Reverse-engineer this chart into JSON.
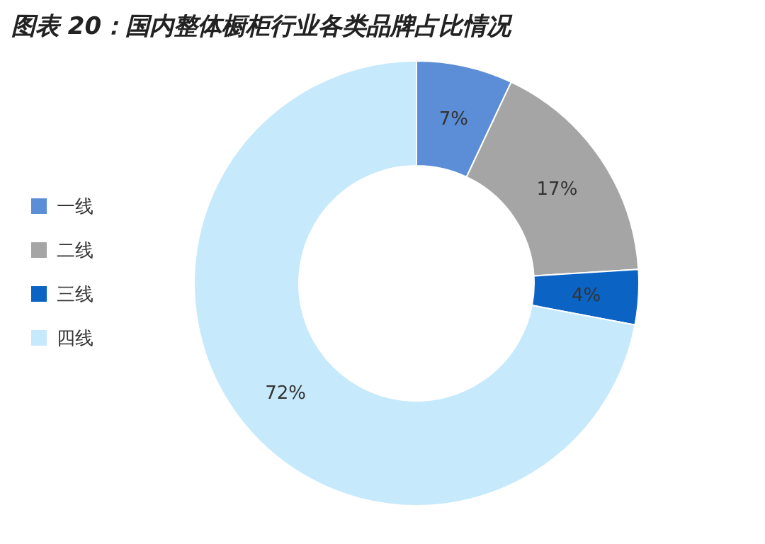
{
  "chart_data": {
    "type": "donut",
    "title": "图表 20：国内整体橱柜行业各类品牌占比情况",
    "categories": [
      "一线",
      "二线",
      "三线",
      "四线"
    ],
    "values": [
      7,
      17,
      4,
      72
    ],
    "colors": [
      "#5b8ed6",
      "#a5a5a5",
      "#0b63c4",
      "#c6e9fb"
    ],
    "value_labels": [
      "7%",
      "17%",
      "4%",
      "72%"
    ],
    "legend": "left"
  }
}
